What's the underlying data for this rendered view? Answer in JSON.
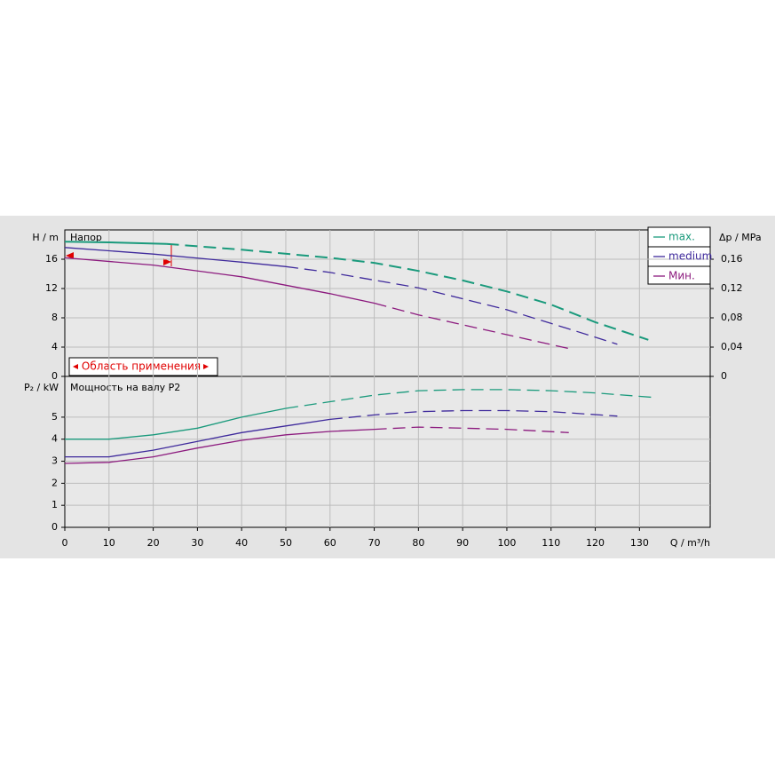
{
  "chart_data": [
    {
      "type": "line",
      "title": "Напор",
      "ylabel": "H / m",
      "y2label": "Δp / MPa",
      "xlim": [
        0,
        146
      ],
      "ylim": [
        0,
        20
      ],
      "yticks": [
        0,
        4,
        8,
        12,
        16
      ],
      "y2lim": [
        0,
        0.2
      ],
      "y2ticks": [
        0,
        {
          "value": 0.04,
          "label": "0,04"
        },
        {
          "value": 0.08,
          "label": "0,08"
        },
        {
          "value": 0.12,
          "label": "0,12"
        },
        {
          "value": 0.16,
          "label": "0,16"
        }
      ],
      "annotation": "Область применения",
      "legend": "upper right",
      "grid": true,
      "series": [
        {
          "name": "max.",
          "color": "#1a9a7c",
          "dash_from": 23,
          "x": [
            0,
            10,
            23,
            40,
            60,
            70,
            80,
            90,
            100,
            110,
            120,
            132
          ],
          "values": [
            18.4,
            18.3,
            18.1,
            17.3,
            16.2,
            15.5,
            14.4,
            13.1,
            11.6,
            9.8,
            7.4,
            5.0
          ]
        },
        {
          "name": "medium",
          "color": "#3f2a9c",
          "dash_from": 50,
          "x": [
            0,
            20,
            40,
            50,
            60,
            80,
            100,
            115,
            125
          ],
          "values": [
            17.6,
            16.7,
            15.6,
            15.0,
            14.2,
            12.1,
            9.1,
            6.3,
            4.4
          ]
        },
        {
          "name": "Мин.",
          "color": "#8c1a7e",
          "dash_from": 70,
          "x": [
            0,
            20,
            40,
            60,
            70,
            80,
            100,
            114
          ],
          "values": [
            16.2,
            15.2,
            13.6,
            11.3,
            10.0,
            8.4,
            5.7,
            3.8
          ]
        }
      ]
    },
    {
      "type": "line",
      "title": "Мощность на валу P2",
      "ylabel": "P₂ / kW",
      "xlabel": "Q / m³/h",
      "xlim": [
        0,
        146
      ],
      "xticks": [
        0,
        10,
        20,
        30,
        40,
        50,
        60,
        70,
        80,
        90,
        100,
        110,
        120,
        130
      ],
      "ylim": [
        0,
        6.85
      ],
      "yticks": [
        0,
        1,
        2,
        3,
        4,
        5
      ],
      "grid": true,
      "series": [
        {
          "color": "#1a9a7c",
          "dash_from": 50,
          "x": [
            0,
            10,
            20,
            30,
            40,
            50,
            60,
            70,
            80,
            90,
            100,
            110,
            120,
            133
          ],
          "values": [
            4.0,
            4.0,
            4.2,
            4.5,
            5.0,
            5.4,
            5.7,
            6.0,
            6.2,
            6.25,
            6.25,
            6.2,
            6.1,
            5.9
          ]
        },
        {
          "color": "#3f2a9c",
          "dash_from": 60,
          "x": [
            0,
            10,
            20,
            30,
            40,
            50,
            60,
            70,
            80,
            90,
            100,
            110,
            125
          ],
          "values": [
            3.2,
            3.2,
            3.5,
            3.9,
            4.3,
            4.6,
            4.9,
            5.1,
            5.25,
            5.3,
            5.3,
            5.25,
            5.05
          ]
        },
        {
          "color": "#8c1a7e",
          "dash_from": 70,
          "x": [
            0,
            10,
            20,
            30,
            40,
            50,
            60,
            70,
            80,
            90,
            100,
            114
          ],
          "values": [
            2.9,
            2.95,
            3.2,
            3.6,
            3.95,
            4.2,
            4.35,
            4.45,
            4.55,
            4.5,
            4.45,
            4.3
          ]
        }
      ]
    }
  ]
}
